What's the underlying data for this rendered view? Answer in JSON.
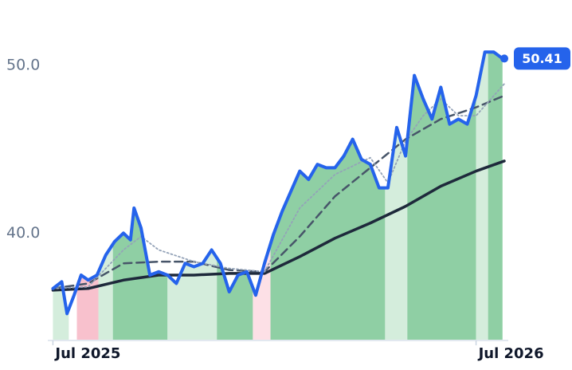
{
  "chart_data": {
    "type": "line",
    "xlim": [
      -0.1,
      12.8
    ],
    "ylim": [
      33.6,
      53.9
    ],
    "xticks": [
      {
        "value": 0,
        "label": "Jul 2025"
      },
      {
        "value": 12,
        "label": "Jul 2026"
      }
    ],
    "yticks": [
      {
        "value": 40,
        "label": "40.0"
      },
      {
        "value": 50,
        "label": "50.0"
      }
    ],
    "grid": false,
    "series": [
      {
        "color": "#2563eb",
        "style": "solid",
        "width": 4,
        "x": [
          0,
          0.25,
          0.4,
          0.6,
          0.8,
          1.0,
          1.25,
          1.5,
          1.75,
          2.0,
          2.2,
          2.3,
          2.5,
          2.75,
          3.0,
          3.25,
          3.5,
          3.75,
          4.0,
          4.25,
          4.5,
          4.75,
          5.0,
          5.25,
          5.5,
          5.75,
          6.0,
          6.25,
          6.5,
          6.75,
          7.0,
          7.25,
          7.5,
          7.75,
          8.0,
          8.25,
          8.5,
          8.75,
          9.0,
          9.25,
          9.5,
          9.75,
          10.0,
          10.25,
          10.5,
          10.75,
          11.0,
          11.25,
          11.5,
          11.75,
          12.0,
          12.25,
          12.5,
          12.75
        ],
        "values": [
          36.7,
          37.1,
          35.2,
          36.3,
          37.5,
          37.2,
          37.5,
          38.7,
          39.5,
          40.0,
          39.6,
          41.5,
          40.3,
          37.5,
          37.7,
          37.5,
          37.0,
          38.2,
          38.0,
          38.2,
          39.0,
          38.2,
          36.5,
          37.5,
          37.7,
          36.3,
          38.2,
          39.9,
          41.3,
          42.5,
          43.7,
          43.2,
          44.1,
          43.9,
          43.9,
          44.6,
          45.6,
          44.4,
          44.1,
          42.7,
          42.7,
          46.3,
          44.6,
          49.4,
          48.0,
          46.8,
          48.7,
          46.5,
          46.8,
          46.5,
          48.2,
          50.8,
          50.8,
          50.41
        ]
      },
      {
        "color": "#1e293b",
        "style": "solid",
        "width": 3.5,
        "x": [
          0,
          1,
          2,
          3,
          4,
          5,
          6,
          7,
          8,
          9,
          10,
          11,
          12,
          12.8
        ],
        "values": [
          36.6,
          36.7,
          37.2,
          37.5,
          37.5,
          37.6,
          37.6,
          38.6,
          39.7,
          40.6,
          41.6,
          42.8,
          43.7,
          44.3
        ]
      },
      {
        "color": "#475569",
        "style": "dash",
        "width": 2.5,
        "x": [
          0,
          1,
          2,
          3,
          4,
          5,
          6,
          7,
          8,
          9,
          10,
          11,
          12,
          12.8
        ],
        "values": [
          36.7,
          37.0,
          38.2,
          38.3,
          38.3,
          37.8,
          37.7,
          39.8,
          42.2,
          43.9,
          45.6,
          46.8,
          47.5,
          48.2
        ]
      },
      {
        "color": "#94a3b8",
        "style": "dot",
        "width": 1.8,
        "x": [
          0,
          1,
          2,
          2.5,
          3,
          4,
          5,
          6,
          7,
          8,
          9,
          9.5,
          10,
          10.5,
          11,
          11.5,
          12,
          12.8
        ],
        "values": [
          36.7,
          36.8,
          39.0,
          39.8,
          39.0,
          38.3,
          37.9,
          37.7,
          41.5,
          43.5,
          44.5,
          43.0,
          45.5,
          47.0,
          48.0,
          47.0,
          47.0,
          48.9
        ]
      }
    ],
    "regions": [
      {
        "start": -0.1,
        "end": 0.45,
        "color": "#d4eddc"
      },
      {
        "start": 0.68,
        "end": 1.29,
        "color": "#f8c1cd"
      },
      {
        "start": 1.29,
        "end": 1.7,
        "color": "#d4eddc"
      },
      {
        "start": 1.7,
        "end": 3.25,
        "color": "#8fcfa4"
      },
      {
        "start": 3.25,
        "end": 4.65,
        "color": "#d4eddc"
      },
      {
        "start": 4.65,
        "end": 5.67,
        "color": "#8fcfa4"
      },
      {
        "start": 5.67,
        "end": 6.17,
        "color": "#fde0e6"
      },
      {
        "start": 6.17,
        "end": 9.42,
        "color": "#8fcfa4"
      },
      {
        "start": 9.42,
        "end": 10.05,
        "color": "#d4eddc"
      },
      {
        "start": 10.05,
        "end": 12.0,
        "color": "#8fcfa4"
      },
      {
        "start": 12.0,
        "end": 12.34,
        "color": "#d4eddc"
      },
      {
        "start": 12.34,
        "end": 12.8,
        "color": "#8fcfa4"
      }
    ],
    "last_label": {
      "value": 50.41,
      "label": "50.41"
    }
  }
}
